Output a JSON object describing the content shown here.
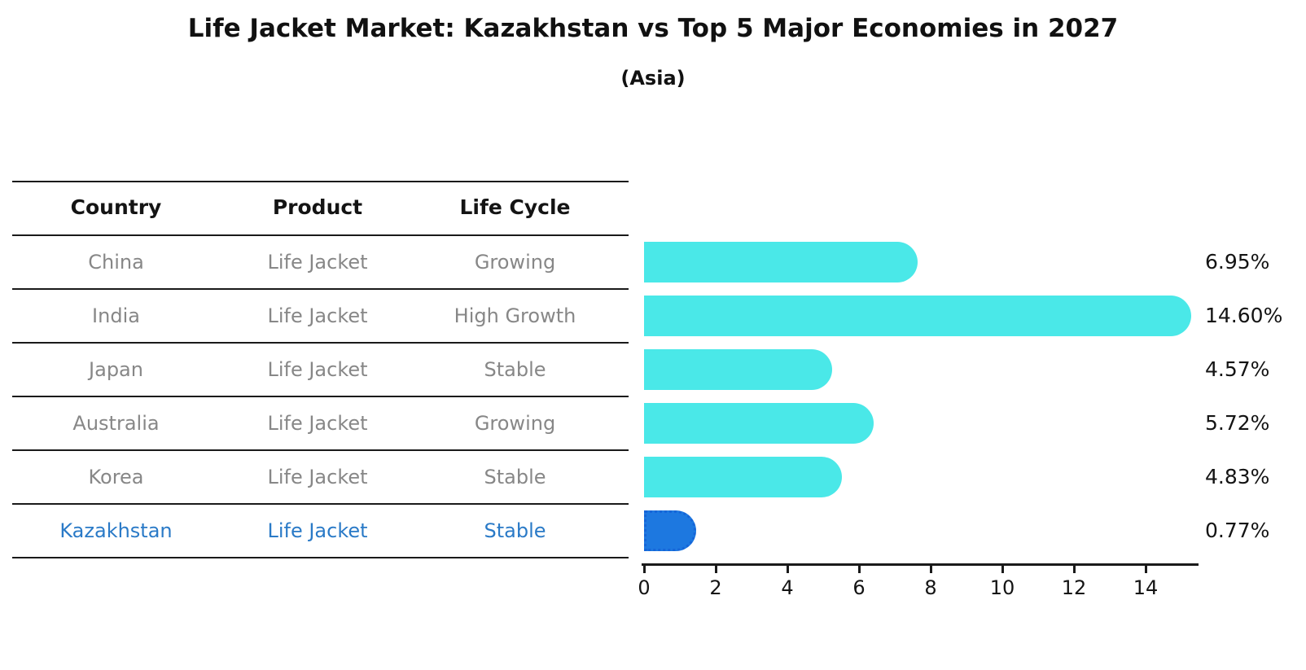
{
  "title": "Life Jacket Market: Kazakhstan vs Top 5 Major Economies in 2027",
  "subtitle": "(Asia)",
  "table": {
    "headers": [
      "Country",
      "Product",
      "Life Cycle"
    ],
    "rows": [
      {
        "country": "China",
        "product": "Life Jacket",
        "life_cycle": "Growing",
        "highlight": false
      },
      {
        "country": "India",
        "product": "Life Jacket",
        "life_cycle": "High Growth",
        "highlight": false
      },
      {
        "country": "Japan",
        "product": "Life Jacket",
        "life_cycle": "Stable",
        "highlight": false
      },
      {
        "country": "Australia",
        "product": "Life Jacket",
        "life_cycle": "Growing",
        "highlight": false
      },
      {
        "country": "Korea",
        "product": "Life Jacket",
        "life_cycle": "Stable",
        "highlight": false
      },
      {
        "country": "Kazakhstan",
        "product": "Life Jacket",
        "life_cycle": "Stable",
        "highlight": true
      }
    ]
  },
  "chart_data": {
    "type": "bar",
    "orientation": "horizontal",
    "title": "Life Jacket Market: Kazakhstan vs Top 5 Major Economies in 2027",
    "subtitle": "(Asia)",
    "categories": [
      "China",
      "India",
      "Japan",
      "Australia",
      "Korea",
      "Kazakhstan"
    ],
    "values": [
      6.95,
      14.6,
      4.57,
      5.72,
      4.83,
      0.77
    ],
    "value_labels": [
      "6.95%",
      "14.60%",
      "4.57%",
      "5.72%",
      "4.83%",
      "0.77%"
    ],
    "highlight_index": 5,
    "xlabel": "",
    "ylabel": "",
    "xlim": [
      0,
      15.5
    ],
    "xticks": [
      0,
      2,
      4,
      6,
      8,
      10,
      12,
      14
    ],
    "grid": false,
    "legend_position": "none"
  },
  "colors": {
    "bar": "#4AE8E8",
    "highlight_bar": "#1D78E0",
    "highlight_border": "#1565D8",
    "highlight_text": "#2A7AC7",
    "row_text": "#878787",
    "heading_text": "#141414",
    "axis": "#1A1A1A"
  }
}
